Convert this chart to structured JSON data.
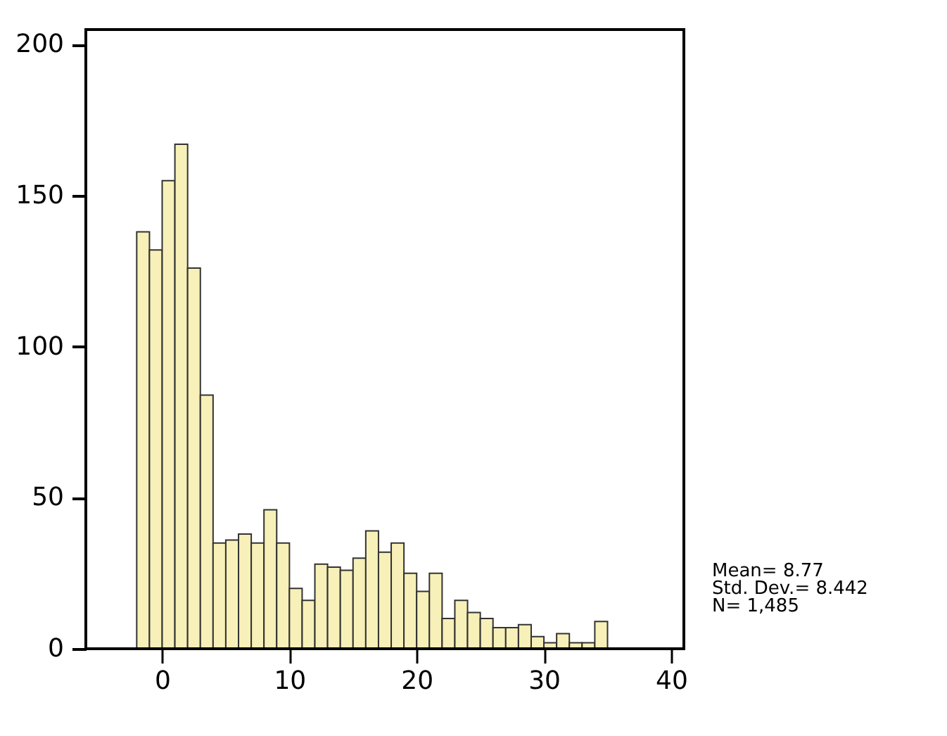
{
  "chart_data": {
    "type": "histogram",
    "bins": [
      -2,
      -1,
      0,
      1,
      2,
      3,
      4,
      5,
      6,
      7,
      8,
      9,
      10,
      11,
      12,
      13,
      14,
      15,
      16,
      17,
      18,
      19,
      20,
      21,
      22,
      23,
      24,
      25,
      26,
      27,
      28,
      29,
      30,
      31,
      32,
      33,
      34,
      35
    ],
    "values": [
      138,
      132,
      155,
      167,
      126,
      84,
      35,
      36,
      38,
      35,
      46,
      35,
      20,
      16,
      28,
      27,
      26,
      30,
      39,
      32,
      35,
      25,
      19,
      25,
      10,
      16,
      12,
      10,
      7,
      7,
      8,
      4,
      2,
      5,
      2,
      2,
      9
    ],
    "color": "#f7f0b8",
    "xlim": [
      -6,
      41
    ],
    "xticks": [
      0,
      10,
      20,
      30,
      40
    ],
    "ylim": [
      0,
      205
    ],
    "yticks": [
      0,
      50,
      100,
      150,
      200
    ],
    "grid": false,
    "annotations": [
      "Mean= 8.77",
      "Std. Dev.= 8.442",
      "N= 1,485"
    ]
  }
}
